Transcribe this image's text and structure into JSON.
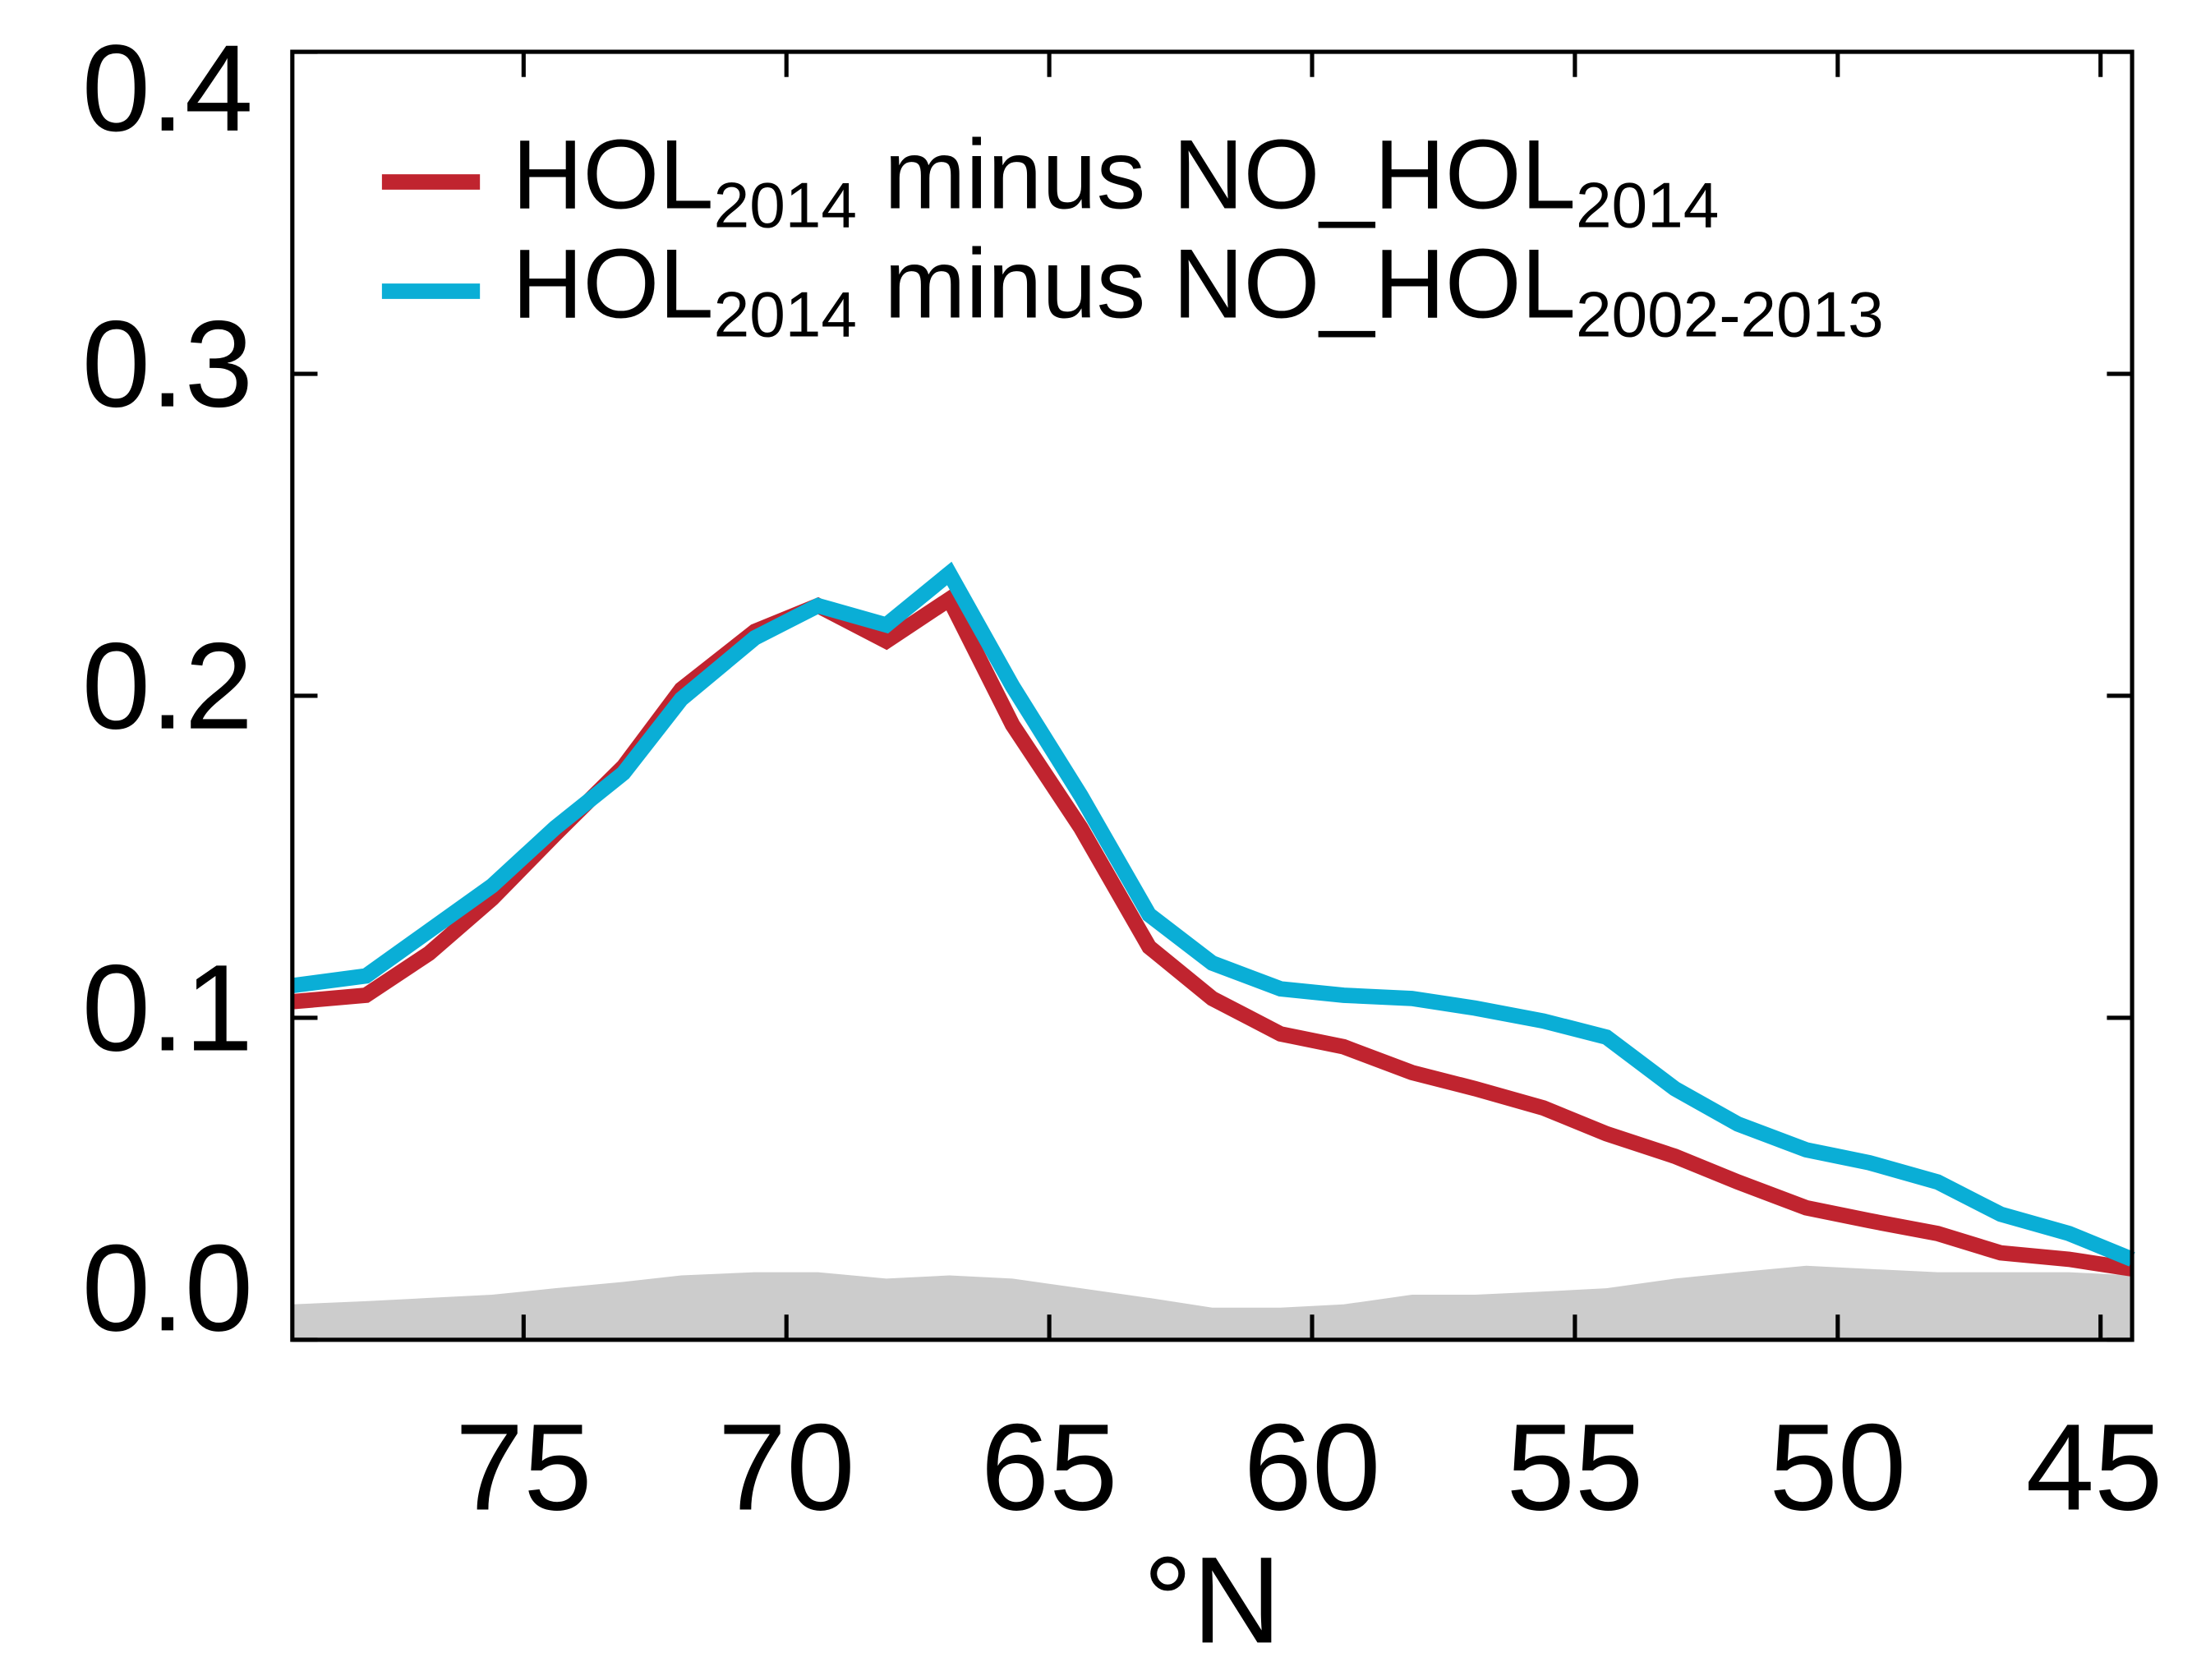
{
  "chart_data": {
    "type": "line",
    "xlabel": "°N",
    "x": [
      79.4,
      78.0,
      76.8,
      75.6,
      74.4,
      73.1,
      72.0,
      70.6,
      69.4,
      68.1,
      66.9,
      65.7,
      64.4,
      63.1,
      61.9,
      60.6,
      59.4,
      58.1,
      56.9,
      55.6,
      54.4,
      53.1,
      51.9,
      50.6,
      49.4,
      48.1,
      46.9,
      45.6,
      44.4
    ],
    "series": [
      {
        "color": "#cccccc",
        "area": true,
        "values": [
          0.011,
          0.012,
          0.013,
          0.014,
          0.016,
          0.018,
          0.02,
          0.021,
          0.021,
          0.019,
          0.02,
          0.019,
          0.016,
          0.013,
          0.01,
          0.01,
          0.011,
          0.014,
          0.014,
          0.015,
          0.016,
          0.019,
          0.021,
          0.023,
          0.022,
          0.021,
          0.021,
          0.021,
          0.02
        ]
      },
      {
        "name": "HOL2014 minus NO_HOL2014",
        "color": "#c0242f",
        "values": [
          0.105,
          0.107,
          0.12,
          0.137,
          0.157,
          0.178,
          0.202,
          0.22,
          0.228,
          0.217,
          0.23,
          0.191,
          0.159,
          0.122,
          0.106,
          0.095,
          0.091,
          0.083,
          0.078,
          0.072,
          0.064,
          0.057,
          0.049,
          0.041,
          0.037,
          0.033,
          0.027,
          0.025,
          0.022
        ]
      },
      {
        "name": "HOL2014 minus NO_HOL2002-2013",
        "color": "#0aaed6",
        "values": [
          0.11,
          0.113,
          0.127,
          0.141,
          0.159,
          0.176,
          0.199,
          0.218,
          0.228,
          0.222,
          0.238,
          0.203,
          0.169,
          0.132,
          0.117,
          0.109,
          0.107,
          0.106,
          0.103,
          0.099,
          0.094,
          0.078,
          0.067,
          0.059,
          0.055,
          0.049,
          0.039,
          0.033,
          0.025
        ]
      }
    ],
    "xlim": [
      79.4,
      44.4
    ],
    "xticks": [
      75,
      70,
      65,
      60,
      55,
      50,
      45
    ],
    "ylim": [
      0,
      0.4
    ],
    "yticks": [
      {
        "value": 0,
        "label": "0.0"
      },
      0.1,
      0.2,
      0.3,
      0.4
    ],
    "legend": "upper left"
  }
}
